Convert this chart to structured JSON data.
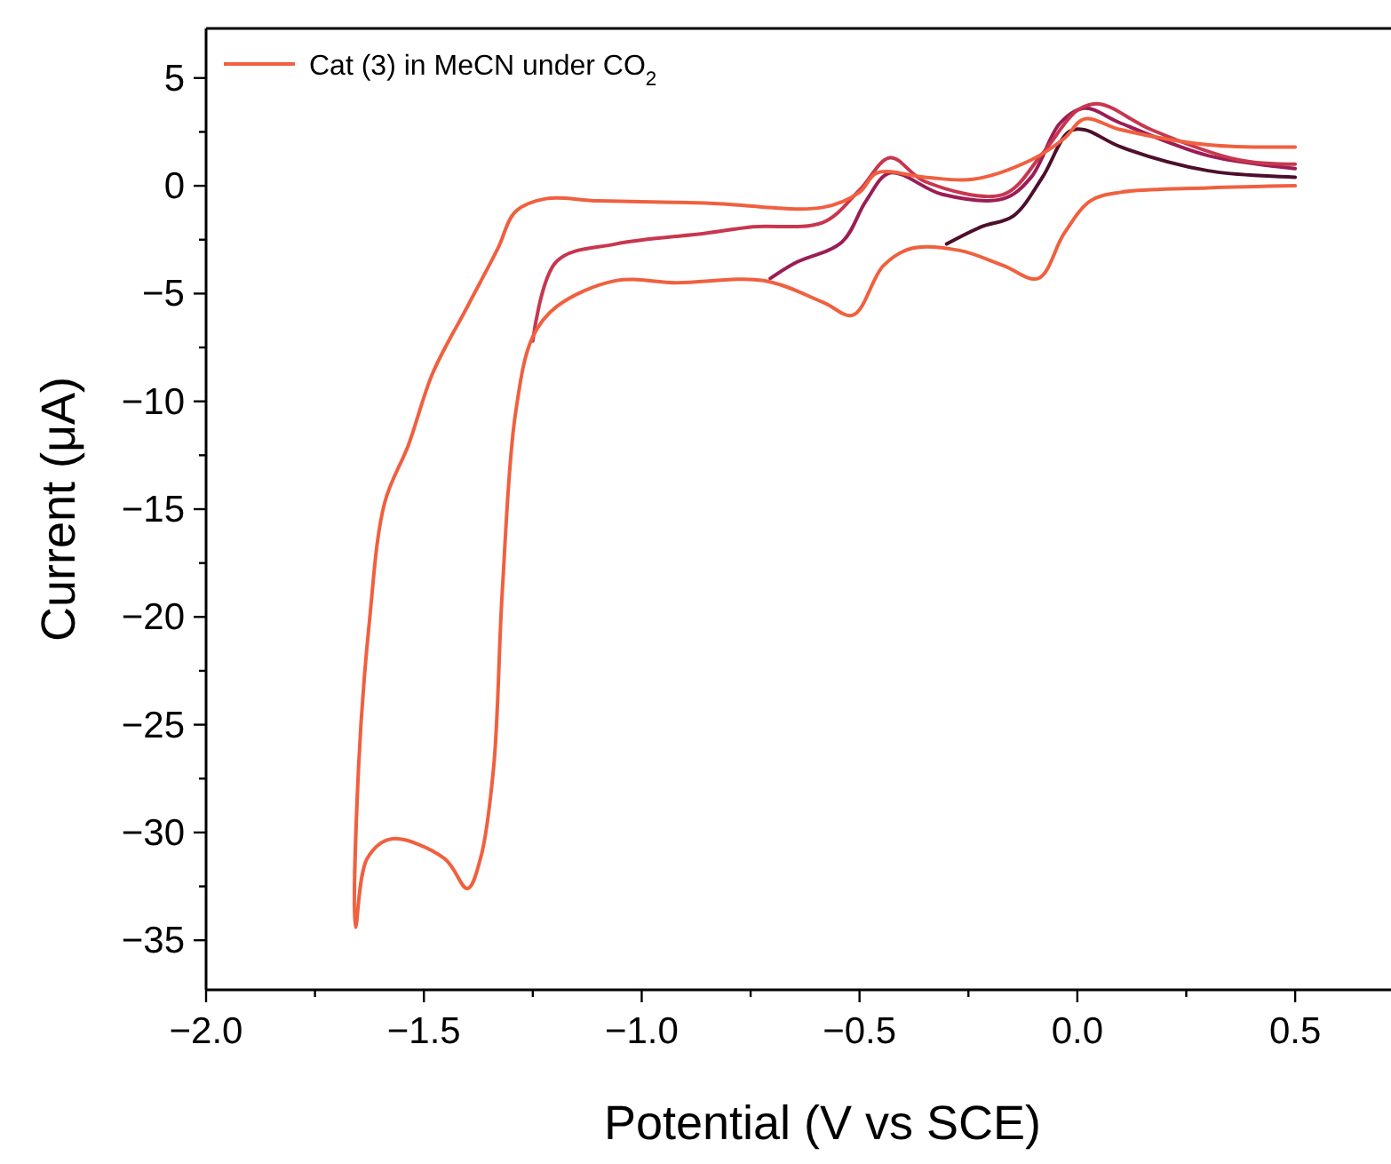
{
  "chart_data": {
    "type": "line",
    "xlabel": "Potential (V vs SCE)",
    "ylabel": "Current (μA)",
    "xlim": [
      -2.0,
      0.72
    ],
    "ylim": [
      -37.3,
      7.3
    ],
    "xticks": [
      {
        "value": -2.0,
        "label": "−2.0"
      },
      {
        "value": -1.75,
        "label": null
      },
      {
        "value": -1.5,
        "label": "−1.5"
      },
      {
        "value": -1.25,
        "label": null
      },
      {
        "value": -1.0,
        "label": "−1.0"
      },
      {
        "value": -0.75,
        "label": null
      },
      {
        "value": -0.5,
        "label": "−0.5"
      },
      {
        "value": -0.25,
        "label": null
      },
      {
        "value": 0.0,
        "label": "0.0"
      },
      {
        "value": 0.25,
        "label": null
      },
      {
        "value": 0.5,
        "label": "0.5"
      }
    ],
    "yticks": [
      5,
      {
        "value": 2.5,
        "label": null
      },
      0,
      {
        "value": -2.5,
        "label": null
      },
      {
        "value": -5,
        "label": "−5"
      },
      {
        "value": -7.5,
        "label": null
      },
      {
        "value": -10,
        "label": "−10"
      },
      {
        "value": -12.5,
        "label": null
      },
      {
        "value": -15,
        "label": "−15"
      },
      {
        "value": -17.5,
        "label": null
      },
      {
        "value": -20,
        "label": "−20"
      },
      {
        "value": -22.5,
        "label": null
      },
      {
        "value": -25,
        "label": "−25"
      },
      {
        "value": -27.5,
        "label": null
      },
      {
        "value": -30,
        "label": "−30"
      },
      {
        "value": -32.5,
        "label": null
      },
      {
        "value": -35,
        "label": "−35"
      }
    ],
    "grid": false,
    "legend": "top left",
    "marker": "none",
    "line_style": "solid",
    "series": [
      {
        "name": "Cat (3) in MeCN under CO$_{2}$",
        "color": "#f0603f",
        "x": [
          0.5,
          0.3,
          0.1,
          0.03,
          -0.03,
          -0.09,
          -0.17,
          -0.27,
          -0.38,
          -0.445,
          -0.515,
          -0.584,
          -0.72,
          -0.92,
          -1.06,
          -1.195,
          -1.25,
          -1.29,
          -1.32,
          -1.34,
          -1.37,
          -1.4,
          -1.453,
          -1.575,
          -1.63,
          -1.657,
          -1.65,
          -1.625,
          -1.59,
          -1.535,
          -1.48,
          -1.4,
          -1.33,
          -1.29,
          -1.22,
          -1.1,
          -0.853,
          -0.584,
          -0.5,
          -0.46,
          -0.35,
          -0.24,
          -0.106,
          -0.03,
          0.016,
          0.1,
          0.3,
          0.5
        ],
        "values": [
          0.0,
          -0.1,
          -0.3,
          -0.7,
          -2.2,
          -4.3,
          -3.7,
          -3.0,
          -2.9,
          -3.7,
          -6.0,
          -5.4,
          -4.4,
          -4.5,
          -4.4,
          -5.6,
          -7.0,
          -10.6,
          -18.8,
          -27,
          -31.2,
          -32.6,
          -31.2,
          -30.3,
          -31.2,
          -34.4,
          -27,
          -20.2,
          -14.7,
          -12,
          -8.7,
          -5.6,
          -2.9,
          -1.2,
          -0.6,
          -0.7,
          -0.8,
          -1.0,
          -0.3,
          0.6,
          0.4,
          0.3,
          1.2,
          2.2,
          3.1,
          2.6,
          1.9,
          1.8
        ]
      },
      {
        "color": "#c8364f",
        "x": [
          -1.25,
          -1.195,
          -1.06,
          -0.853,
          -0.745,
          -0.584,
          -0.5,
          -0.43,
          -0.35,
          -0.17,
          -0.08,
          0.0,
          0.05,
          0.17,
          0.37,
          0.5
        ],
        "values": [
          -7.2,
          -3.5,
          -2.7,
          -2.2,
          -1.9,
          -1.7,
          -0.2,
          1.3,
          0.2,
          -0.4,
          1.5,
          3.5,
          3.8,
          2.6,
          1.2,
          1.0
        ]
      },
      {
        "color": "#9c1d55",
        "x": [
          -0.705,
          -0.65,
          -0.54,
          -0.485,
          -0.43,
          -0.31,
          -0.17,
          -0.106,
          -0.04,
          0.016,
          0.1,
          0.3,
          0.5
        ],
        "values": [
          -4.3,
          -3.6,
          -2.6,
          -0.7,
          0.6,
          -0.4,
          -0.6,
          0.4,
          2.9,
          3.6,
          2.9,
          1.4,
          0.8
        ]
      },
      {
        "color": "#4d0f2c",
        "x": [
          -0.3,
          -0.22,
          -0.147,
          -0.08,
          -0.02,
          0.016,
          0.1,
          0.3,
          0.5
        ],
        "values": [
          -2.7,
          -1.9,
          -1.4,
          0.4,
          2.5,
          2.6,
          1.8,
          0.7,
          0.4
        ]
      }
    ]
  }
}
